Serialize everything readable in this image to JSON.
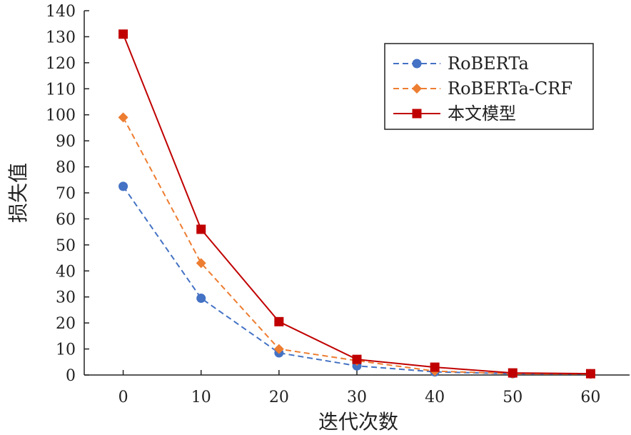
{
  "chart_data": {
    "type": "line",
    "x": [
      0,
      10,
      20,
      30,
      40,
      50,
      60
    ],
    "xlabel": "迭代次数",
    "ylabel": "损失值",
    "xlim": [
      -5,
      65
    ],
    "ylim": [
      0,
      140
    ],
    "xticks": [
      0,
      10,
      20,
      30,
      40,
      50,
      60
    ],
    "yticks": [
      0,
      10,
      20,
      30,
      40,
      50,
      60,
      70,
      80,
      90,
      100,
      110,
      120,
      130,
      140
    ],
    "grid": false,
    "legend_position": "top-right",
    "series": [
      {
        "name": "RoBERTa",
        "color": "#4472C4",
        "line": "dashed",
        "marker": "circle",
        "values": [
          72.5,
          29.5,
          8.5,
          3.5,
          1.2,
          0.5,
          0.4
        ]
      },
      {
        "name": "RoBERTa-CRF",
        "color": "#ED7D31",
        "line": "dashed",
        "marker": "diamond",
        "values": [
          99,
          43,
          10,
          5.5,
          1.5,
          0.5,
          0.4
        ]
      },
      {
        "name": "本文模型",
        "color": "#C00000",
        "line": "solid",
        "marker": "square",
        "values": [
          131,
          56,
          20.5,
          6,
          3,
          0.8,
          0.5
        ]
      }
    ]
  }
}
